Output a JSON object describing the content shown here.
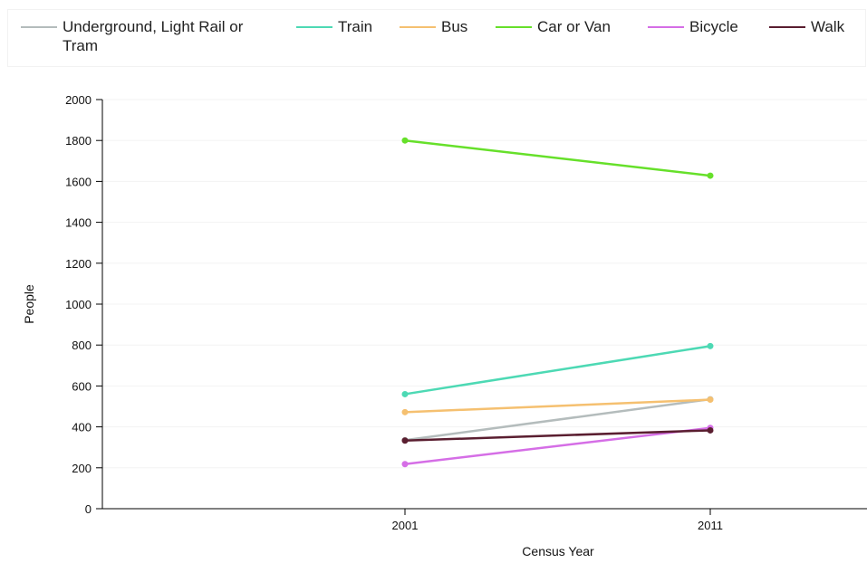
{
  "chart_data": {
    "type": "line",
    "xlabel": "Census Year",
    "ylabel": "People",
    "categories": [
      "2001",
      "2011"
    ],
    "ylim": [
      0,
      2000
    ],
    "yticks": [
      0,
      200,
      400,
      600,
      800,
      1000,
      1200,
      1400,
      1600,
      1800,
      2000
    ],
    "grid": true,
    "legend_position": "top",
    "series": [
      {
        "name": "Underground, Light Rail or Tram",
        "color": "#b4bcbc",
        "values": [
          335,
          535
        ]
      },
      {
        "name": "Train",
        "color": "#4dd9b4",
        "values": [
          560,
          795
        ]
      },
      {
        "name": "Bus",
        "color": "#f5c070",
        "values": [
          472,
          533
        ]
      },
      {
        "name": "Car or Van",
        "color": "#66e02a",
        "values": [
          1800,
          1628
        ]
      },
      {
        "name": "Bicycle",
        "color": "#d56ee6",
        "values": [
          218,
          395
        ]
      },
      {
        "name": "Walk",
        "color": "#5a1e30",
        "values": [
          333,
          383
        ]
      }
    ]
  }
}
